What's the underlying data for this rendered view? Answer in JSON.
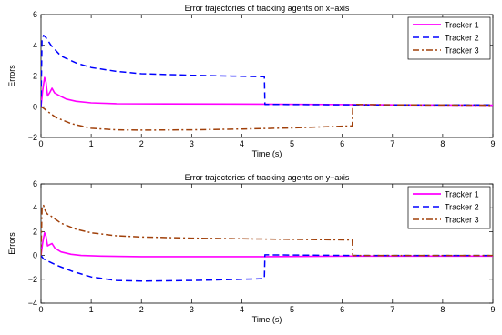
{
  "chart_data": [
    {
      "type": "line",
      "title": "Error trajectories of tracking agents on x−axis",
      "xlabel": "Time (s)",
      "ylabel": "Errors",
      "xlim": [
        0,
        9
      ],
      "ylim": [
        -2,
        6
      ],
      "xticks": [
        "0",
        "1",
        "2",
        "3",
        "4",
        "5",
        "6",
        "7",
        "8",
        "9"
      ],
      "yticks": [
        "−2",
        "0",
        "2",
        "4",
        "6"
      ],
      "grid": false,
      "legend_position": "top-right",
      "series": [
        {
          "name": "Tracker 1",
          "color": "#ff00ff",
          "style": "solid",
          "points": [
            [
              0,
              0
            ],
            [
              0.03,
              1.0
            ],
            [
              0.07,
              1.9
            ],
            [
              0.1,
              1.6
            ],
            [
              0.13,
              0.7
            ],
            [
              0.17,
              0.9
            ],
            [
              0.22,
              1.2
            ],
            [
              0.27,
              0.9
            ],
            [
              0.35,
              0.75
            ],
            [
              0.5,
              0.5
            ],
            [
              0.7,
              0.35
            ],
            [
              1.0,
              0.25
            ],
            [
              1.5,
              0.2
            ],
            [
              2.5,
              0.18
            ],
            [
              4.45,
              0.17
            ],
            [
              6.2,
              0.14
            ],
            [
              7,
              0.12
            ],
            [
              9,
              0.1
            ]
          ]
        },
        {
          "name": "Tracker 2",
          "color": "#0000ff",
          "style": "dashed",
          "points": [
            [
              0,
              0
            ],
            [
              0.02,
              4.4
            ],
            [
              0.05,
              4.65
            ],
            [
              0.1,
              4.5
            ],
            [
              0.2,
              4.0
            ],
            [
              0.4,
              3.3
            ],
            [
              0.7,
              2.85
            ],
            [
              1.0,
              2.55
            ],
            [
              1.5,
              2.3
            ],
            [
              2.0,
              2.15
            ],
            [
              3.0,
              2.05
            ],
            [
              4.45,
              1.95
            ],
            [
              4.46,
              0.15
            ],
            [
              6.2,
              0.12
            ],
            [
              7,
              0.12
            ],
            [
              9,
              0.12
            ]
          ]
        },
        {
          "name": "Tracker 3",
          "color": "#a0400a",
          "style": "dashdot",
          "points": [
            [
              0,
              0
            ],
            [
              0.05,
              -0.1
            ],
            [
              0.15,
              -0.35
            ],
            [
              0.3,
              -0.7
            ],
            [
              0.6,
              -1.1
            ],
            [
              1.0,
              -1.4
            ],
            [
              1.5,
              -1.5
            ],
            [
              2.0,
              -1.52
            ],
            [
              3.0,
              -1.5
            ],
            [
              4.0,
              -1.45
            ],
            [
              5.0,
              -1.38
            ],
            [
              6.2,
              -1.25
            ],
            [
              6.21,
              0.15
            ],
            [
              7,
              0.12
            ],
            [
              9,
              0.1
            ]
          ]
        }
      ]
    },
    {
      "type": "line",
      "title": "Error trajectories of tracking agents on y−axis",
      "xlabel": "Time (s)",
      "ylabel": "Errors",
      "xlim": [
        0,
        9
      ],
      "ylim": [
        -4,
        6
      ],
      "xticks": [
        "0",
        "1",
        "2",
        "3",
        "4",
        "5",
        "6",
        "7",
        "8",
        "9"
      ],
      "yticks": [
        "−4",
        "−2",
        "0",
        "2",
        "4",
        "6"
      ],
      "grid": false,
      "legend_position": "top-right",
      "series": [
        {
          "name": "Tracker 1",
          "color": "#ff00ff",
          "style": "solid",
          "points": [
            [
              0,
              0
            ],
            [
              0.03,
              1.0
            ],
            [
              0.07,
              1.9
            ],
            [
              0.1,
              1.6
            ],
            [
              0.13,
              0.8
            ],
            [
              0.17,
              0.9
            ],
            [
              0.22,
              1.0
            ],
            [
              0.28,
              0.6
            ],
            [
              0.4,
              0.3
            ],
            [
              0.6,
              0.1
            ],
            [
              0.8,
              0.0
            ],
            [
              1.2,
              -0.05
            ],
            [
              2.0,
              -0.1
            ],
            [
              3.0,
              -0.1
            ],
            [
              4.45,
              -0.1
            ],
            [
              6.2,
              -0.05
            ],
            [
              7,
              -0.05
            ],
            [
              9,
              -0.05
            ]
          ]
        },
        {
          "name": "Tracker 2",
          "color": "#0000ff",
          "style": "dashed",
          "points": [
            [
              0,
              0
            ],
            [
              0.05,
              -0.3
            ],
            [
              0.15,
              -0.5
            ],
            [
              0.3,
              -0.8
            ],
            [
              0.6,
              -1.3
            ],
            [
              1.0,
              -1.8
            ],
            [
              1.5,
              -2.1
            ],
            [
              2.0,
              -2.15
            ],
            [
              3.0,
              -2.1
            ],
            [
              4.0,
              -2.0
            ],
            [
              4.45,
              -1.95
            ],
            [
              4.46,
              0.05
            ],
            [
              6.2,
              0.0
            ],
            [
              7,
              0.0
            ],
            [
              9,
              0.0
            ]
          ]
        },
        {
          "name": "Tracker 3",
          "color": "#a0400a",
          "style": "dashdot",
          "points": [
            [
              0,
              0
            ],
            [
              0.02,
              3.9
            ],
            [
              0.05,
              4.2
            ],
            [
              0.08,
              3.8
            ],
            [
              0.12,
              3.5
            ],
            [
              0.2,
              3.3
            ],
            [
              0.4,
              2.7
            ],
            [
              0.7,
              2.2
            ],
            [
              1.0,
              1.9
            ],
            [
              1.5,
              1.65
            ],
            [
              2.0,
              1.55
            ],
            [
              3.0,
              1.45
            ],
            [
              4.0,
              1.4
            ],
            [
              5.0,
              1.35
            ],
            [
              6.2,
              1.3
            ],
            [
              6.21,
              0.0
            ],
            [
              7,
              0.0
            ],
            [
              9,
              0.0
            ]
          ]
        }
      ]
    }
  ]
}
